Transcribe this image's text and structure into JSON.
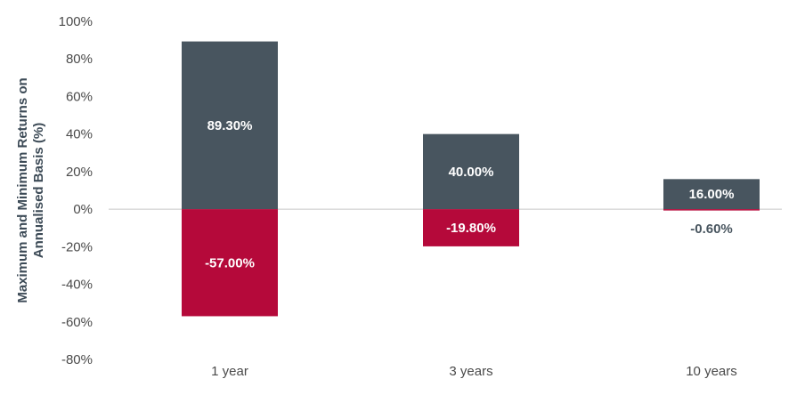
{
  "chart_data": {
    "type": "bar",
    "categories": [
      "1 year",
      "3 years",
      "10 years"
    ],
    "series": [
      {
        "values": [
          89.3,
          40.0,
          16.0
        ],
        "labels": [
          "89.30%",
          "40.00%",
          "16.00%"
        ],
        "color": "#48555f"
      },
      {
        "values": [
          -57.0,
          -19.8,
          -0.6
        ],
        "labels": [
          "-57.00%",
          "-19.80%",
          "-0.60%"
        ],
        "color": "#b5093a"
      }
    ],
    "ylabel_lines": [
      "Maximum and Minimum Returns on",
      "Annualised Basis (%)"
    ],
    "ylim": [
      -80,
      100
    ],
    "yticks": [
      100,
      80,
      60,
      40,
      20,
      0,
      -20,
      -40,
      -60,
      -80
    ],
    "ytick_labels": [
      "100%",
      "80%",
      "60%",
      "40%",
      "20%",
      "0%",
      "-20%",
      "-40%",
      "-60%",
      "-80%"
    ],
    "grid": false,
    "zero_line_color": "#c8c8c8"
  }
}
